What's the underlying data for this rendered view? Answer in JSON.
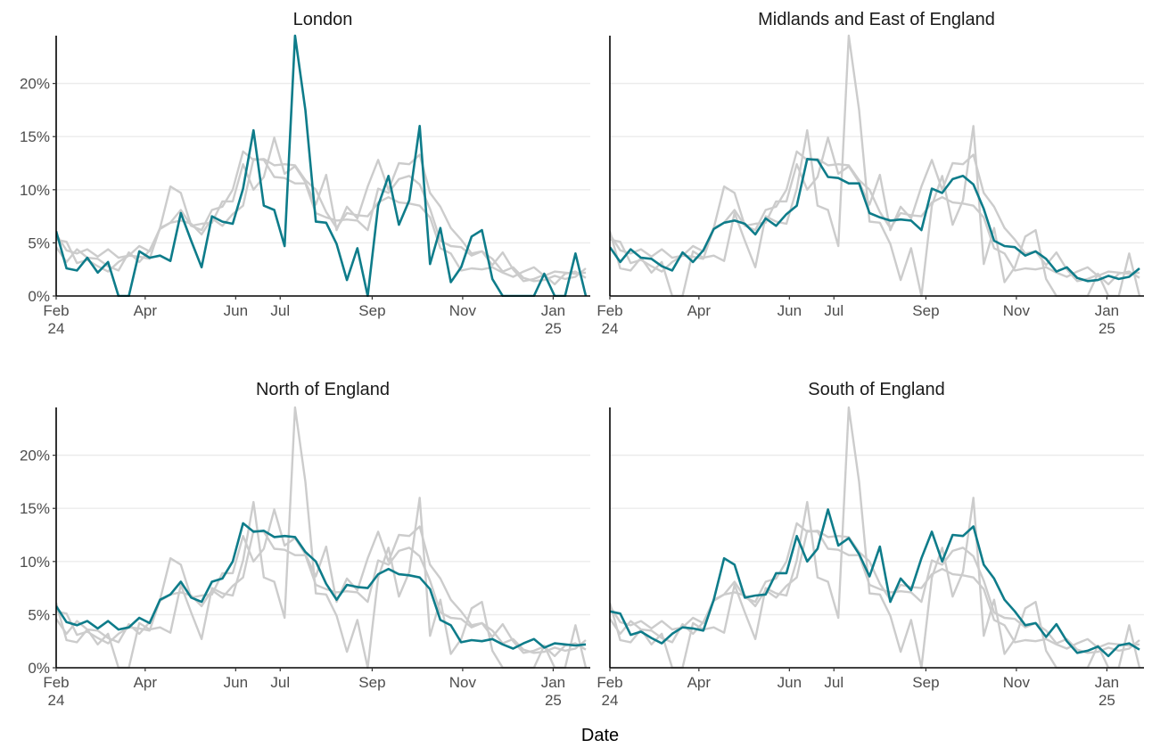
{
  "chart_data": {
    "type": "line",
    "xlabel": "Date",
    "ylabel": "",
    "ylim": [
      0,
      24.5
    ],
    "y_ticks": [
      {
        "value": 0,
        "label": "0%"
      },
      {
        "value": 5,
        "label": "5%"
      },
      {
        "value": 10,
        "label": "10%"
      },
      {
        "value": 15,
        "label": "15%"
      },
      {
        "value": 20,
        "label": "20%"
      }
    ],
    "x_ticks": [
      {
        "date": "2024-02-01",
        "label": [
          "Feb",
          "24"
        ]
      },
      {
        "date": "2024-04-01",
        "label": [
          "Apr"
        ]
      },
      {
        "date": "2024-06-01",
        "label": [
          "Jun"
        ]
      },
      {
        "date": "2024-07-01",
        "label": [
          "Jul"
        ]
      },
      {
        "date": "2024-09-01",
        "label": [
          "Sep"
        ]
      },
      {
        "date": "2024-11-01",
        "label": [
          "Nov"
        ]
      },
      {
        "date": "2025-01-01",
        "label": [
          "Jan",
          "25"
        ]
      }
    ],
    "x_start": "2024-02-01",
    "x_end": "2025-01-26",
    "highlight_color": "#0e7c8a",
    "background_color": "#cccccc",
    "grid": "horizontal",
    "weekly_dates": [
      "2024-02-01",
      "2024-02-08",
      "2024-02-15",
      "2024-02-22",
      "2024-02-29",
      "2024-03-07",
      "2024-03-14",
      "2024-03-21",
      "2024-03-28",
      "2024-04-04",
      "2024-04-11",
      "2024-04-18",
      "2024-04-25",
      "2024-05-02",
      "2024-05-09",
      "2024-05-16",
      "2024-05-23",
      "2024-05-30",
      "2024-06-06",
      "2024-06-13",
      "2024-06-20",
      "2024-06-27",
      "2024-07-04",
      "2024-07-11",
      "2024-07-18",
      "2024-07-25",
      "2024-08-01",
      "2024-08-08",
      "2024-08-15",
      "2024-08-22",
      "2024-08-29",
      "2024-09-05",
      "2024-09-12",
      "2024-09-19",
      "2024-09-26",
      "2024-10-03",
      "2024-10-10",
      "2024-10-17",
      "2024-10-24",
      "2024-10-31",
      "2024-11-07",
      "2024-11-14",
      "2024-11-21",
      "2024-11-28",
      "2024-12-05",
      "2024-12-12",
      "2024-12-19",
      "2024-12-26",
      "2025-01-02",
      "2025-01-09",
      "2025-01-16",
      "2025-01-23"
    ],
    "regions": [
      {
        "name": "London",
        "values": [
          6.1,
          2.6,
          2.4,
          3.6,
          2.2,
          3.2,
          0.0,
          0.0,
          4.2,
          3.6,
          3.8,
          3.3,
          7.8,
          5.2,
          2.7,
          7.5,
          7.0,
          6.8,
          10.1,
          15.6,
          8.5,
          8.1,
          4.7,
          24.5,
          17.5,
          7.0,
          6.9,
          4.9,
          1.5,
          4.5,
          0.0,
          8.5,
          11.3,
          6.7,
          9.0,
          16.0,
          3.0,
          6.4,
          1.3,
          2.7,
          5.6,
          6.2,
          1.6,
          0.0,
          0.0,
          0.0,
          0.0,
          2.1,
          0.0,
          0.0,
          4.0,
          0.0
        ]
      },
      {
        "name": "Midlands and East of England",
        "values": [
          4.6,
          3.2,
          4.4,
          3.6,
          3.5,
          2.8,
          2.4,
          4.1,
          3.2,
          4.3,
          6.3,
          6.9,
          7.1,
          6.8,
          5.8,
          7.3,
          6.6,
          7.7,
          8.5,
          12.9,
          12.8,
          11.2,
          11.1,
          10.6,
          10.6,
          7.8,
          7.4,
          7.1,
          7.2,
          7.1,
          6.2,
          10.1,
          9.7,
          11.0,
          11.3,
          10.5,
          8.2,
          5.2,
          4.7,
          4.6,
          3.8,
          4.2,
          3.5,
          2.3,
          2.7,
          1.7,
          1.4,
          1.5,
          1.9,
          1.6,
          1.8,
          2.6
        ]
      },
      {
        "name": "North of England",
        "values": [
          5.8,
          4.3,
          4.0,
          4.4,
          3.7,
          4.4,
          3.6,
          3.8,
          4.7,
          4.2,
          6.4,
          6.9,
          8.1,
          6.6,
          6.2,
          8.1,
          8.4,
          10.0,
          13.6,
          12.8,
          12.9,
          12.3,
          12.4,
          12.3,
          10.9,
          10.0,
          7.9,
          6.4,
          7.8,
          7.6,
          7.5,
          8.8,
          9.3,
          8.8,
          8.7,
          8.5,
          7.4,
          4.5,
          4.0,
          2.4,
          2.6,
          2.5,
          2.7,
          2.2,
          1.8,
          2.3,
          2.7,
          1.9,
          2.3,
          2.2,
          2.1,
          2.2
        ]
      },
      {
        "name": "South of England",
        "values": [
          5.3,
          5.1,
          3.1,
          3.4,
          2.8,
          2.3,
          3.2,
          3.8,
          3.7,
          3.5,
          6.4,
          10.3,
          9.7,
          6.6,
          6.8,
          6.9,
          8.9,
          8.9,
          12.4,
          10.0,
          11.2,
          14.9,
          11.5,
          12.2,
          10.7,
          8.6,
          11.4,
          6.2,
          8.4,
          7.3,
          10.3,
          12.8,
          10.0,
          12.5,
          12.4,
          13.3,
          9.7,
          8.4,
          6.4,
          5.3,
          4.0,
          4.2,
          2.9,
          4.1,
          2.5,
          1.4,
          1.6,
          2.0,
          1.1,
          2.1,
          2.3,
          1.7
        ]
      }
    ]
  }
}
